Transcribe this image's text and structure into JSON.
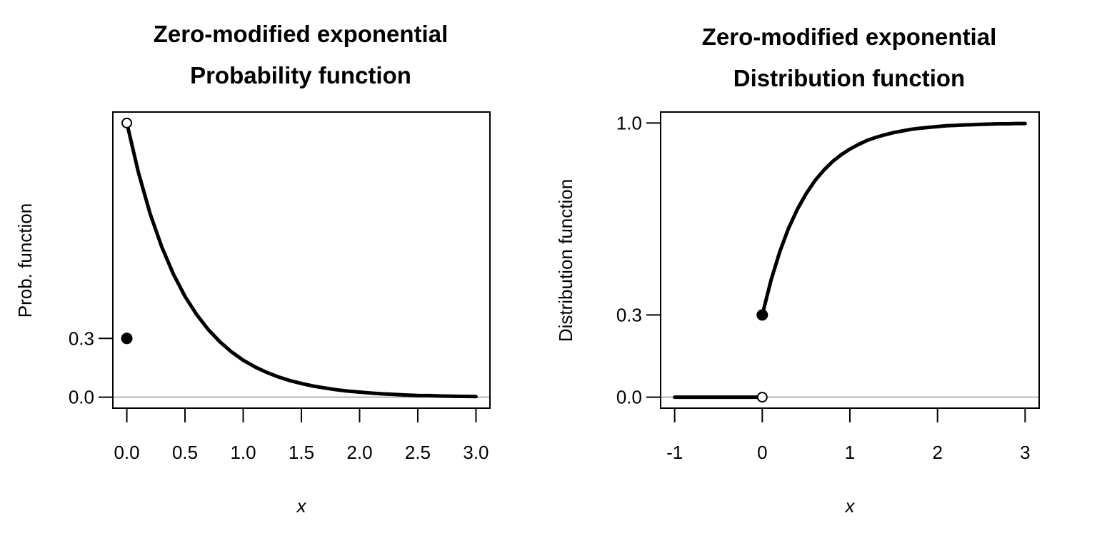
{
  "chart_data": [
    {
      "type": "line",
      "title": [
        "Zero-modified exponential",
        "Probability function"
      ],
      "xlabel": "x",
      "ylabel": "Prob. function",
      "xlim": [
        0,
        3
      ],
      "ylim": [
        0,
        1.4
      ],
      "xticks": [
        "0.0",
        "0.5",
        "1.0",
        "1.5",
        "2.0",
        "2.5",
        "3.0"
      ],
      "xtick_values": [
        0,
        0.5,
        1,
        1.5,
        2,
        2.5,
        3
      ],
      "yticks": [
        "0.0",
        "0.3"
      ],
      "ytick_values": [
        0,
        0.3
      ],
      "reference_line_y": 0,
      "reference_line_color": "#b3b3b3",
      "grid": false,
      "series": [
        {
          "x": [
            0,
            0.1,
            0.2,
            0.3,
            0.4,
            0.5,
            0.6,
            0.7,
            0.8,
            0.9,
            1,
            1.1,
            1.2,
            1.3,
            1.4,
            1.5,
            1.6,
            1.7,
            1.8,
            1.9,
            2,
            2.1,
            2.2,
            2.3,
            2.4,
            2.5,
            2.6,
            2.7,
            2.8,
            2.9,
            3
          ],
          "y": [
            1.4,
            1.146,
            0.938,
            0.768,
            0.629,
            0.515,
            0.422,
            0.345,
            0.283,
            0.231,
            0.189,
            0.155,
            0.127,
            0.104,
            0.085,
            0.07,
            0.057,
            0.047,
            0.038,
            0.031,
            0.026,
            0.021,
            0.017,
            0.014,
            0.011,
            0.009,
            0.008,
            0.006,
            0.005,
            0.004,
            0.003
          ]
        }
      ],
      "points": [
        {
          "x": 0,
          "y": 1.4,
          "style": "open"
        },
        {
          "x": 0,
          "y": 0.3,
          "style": "filled"
        }
      ]
    },
    {
      "type": "line",
      "title": [
        "Zero-modified exponential",
        "Distribution function"
      ],
      "xlabel": "x",
      "ylabel": "Distribution function",
      "xlim": [
        -1,
        3
      ],
      "ylim": [
        0,
        1
      ],
      "xticks": [
        "-1",
        "0",
        "1",
        "2",
        "3"
      ],
      "xtick_values": [
        -1,
        0,
        1,
        2,
        3
      ],
      "yticks": [
        "0.0",
        "0.3",
        "1.0"
      ],
      "ytick_values": [
        0,
        0.3,
        1
      ],
      "reference_line_y": 0,
      "reference_line_color": "#b3b3b3",
      "grid": false,
      "series": [
        {
          "x": [
            -1,
            0
          ],
          "y": [
            0,
            0
          ]
        },
        {
          "x": [
            0,
            0.1,
            0.2,
            0.3,
            0.4,
            0.5,
            0.6,
            0.7,
            0.8,
            0.9,
            1,
            1.1,
            1.2,
            1.3,
            1.4,
            1.5,
            1.6,
            1.7,
            1.8,
            1.9,
            2,
            2.1,
            2.2,
            2.3,
            2.4,
            2.5,
            2.6,
            2.7,
            2.8,
            2.9,
            3
          ],
          "y": [
            0.3,
            0.427,
            0.531,
            0.616,
            0.685,
            0.742,
            0.789,
            0.827,
            0.859,
            0.884,
            0.905,
            0.922,
            0.937,
            0.948,
            0.957,
            0.965,
            0.971,
            0.977,
            0.981,
            0.984,
            0.987,
            0.99,
            0.991,
            0.993,
            0.994,
            0.995,
            0.996,
            0.997,
            0.997,
            0.998,
            0.998
          ]
        }
      ],
      "points": [
        {
          "x": 0,
          "y": 0,
          "style": "open"
        },
        {
          "x": 0,
          "y": 0.3,
          "style": "filled"
        }
      ]
    }
  ]
}
